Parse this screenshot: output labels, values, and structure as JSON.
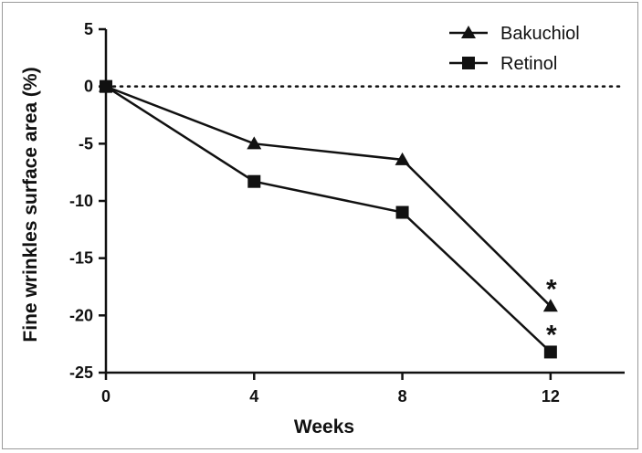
{
  "chart_data": {
    "type": "line",
    "x": [
      0,
      4,
      8,
      12
    ],
    "xticks": [
      0,
      4,
      8,
      12
    ],
    "yticks": [
      5,
      0,
      -5,
      -10,
      -15,
      -20,
      -25
    ],
    "xlim": [
      0,
      14
    ],
    "ylim": [
      -25,
      5
    ],
    "xlabel": "Weeks",
    "ylabel": "Fine wrinkles surface area (%)",
    "reference_line": {
      "y": 0,
      "style": "dotted"
    },
    "legend_position": "top-right",
    "series": [
      {
        "name": "Bakuchiol",
        "marker": "triangle",
        "values": [
          0,
          -5,
          -6.4,
          -19.2
        ],
        "significance": [
          "",
          "",
          "",
          "*"
        ]
      },
      {
        "name": "Retinol",
        "marker": "square",
        "values": [
          0,
          -8.3,
          -11.0,
          -23.2
        ],
        "significance": [
          "",
          "",
          "",
          "*"
        ]
      }
    ],
    "colors": {
      "line": "#111111",
      "frame": "#9a9a9a"
    }
  }
}
